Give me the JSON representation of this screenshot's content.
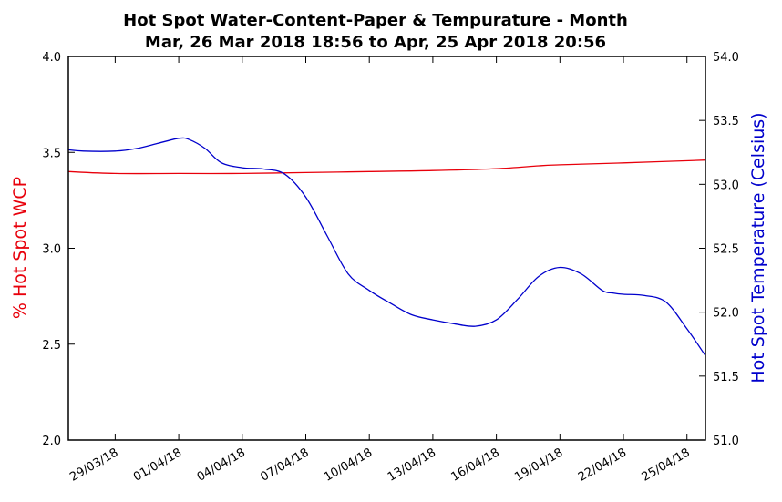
{
  "chart_data": {
    "type": "line",
    "title": "Hot Spot Water-Content-Paper & Tempurature - Month",
    "subtitle": "Mar, 26 Mar 2018 18:56 to Apr, 25 Apr 2018 20:56",
    "x_range": [
      "2018-03-26T18:56",
      "2018-04-25T20:56"
    ],
    "x_ticks": [
      {
        "date": "2018-03-29",
        "label": "29/03/18"
      },
      {
        "date": "2018-04-01",
        "label": "01/04/18"
      },
      {
        "date": "2018-04-04",
        "label": "04/04/18"
      },
      {
        "date": "2018-04-07",
        "label": "07/04/18"
      },
      {
        "date": "2018-04-10",
        "label": "10/04/18"
      },
      {
        "date": "2018-04-13",
        "label": "13/04/18"
      },
      {
        "date": "2018-04-16",
        "label": "16/04/18"
      },
      {
        "date": "2018-04-19",
        "label": "19/04/18"
      },
      {
        "date": "2018-04-22",
        "label": "22/04/18"
      },
      {
        "date": "2018-04-25",
        "label": "25/04/18"
      }
    ],
    "y_left": {
      "label": "% Hot Spot WCP",
      "ylim": [
        2.0,
        4.0
      ],
      "ticks": [
        "2.0",
        "2.5",
        "3.0",
        "3.5",
        "4.0"
      ],
      "color": "#e8000b"
    },
    "y_right": {
      "label": "Hot Spot Temperature (Celsius)",
      "ylim": [
        51.0,
        54.0
      ],
      "ticks": [
        "51.0",
        "51.5",
        "52.0",
        "52.5",
        "53.0",
        "53.5",
        "54.0"
      ],
      "color": "#0000cc"
    },
    "grid": false,
    "series": [
      {
        "axis": "left",
        "color": "#e8000b",
        "points": [
          [
            "2018-03-26T18:56",
            3.4
          ],
          [
            "2018-03-29T00:00",
            3.39
          ],
          [
            "2018-04-01T00:00",
            3.39
          ],
          [
            "2018-04-04T00:00",
            3.39
          ],
          [
            "2018-04-07T00:00",
            3.395
          ],
          [
            "2018-04-10T00:00",
            3.4
          ],
          [
            "2018-04-13T00:00",
            3.405
          ],
          [
            "2018-04-16T00:00",
            3.415
          ],
          [
            "2018-04-18T00:00",
            3.43
          ],
          [
            "2018-04-19T00:00",
            3.435
          ],
          [
            "2018-04-22T00:00",
            3.445
          ],
          [
            "2018-04-25T20:56",
            3.46
          ]
        ]
      },
      {
        "axis": "right",
        "color": "#0000cc",
        "points": [
          [
            "2018-03-26T18:56",
            53.27
          ],
          [
            "2018-03-27T12:00",
            53.26
          ],
          [
            "2018-03-29T00:00",
            53.26
          ],
          [
            "2018-03-30T00:00",
            53.28
          ],
          [
            "2018-03-31T00:00",
            53.32
          ],
          [
            "2018-04-01T00:00",
            53.36
          ],
          [
            "2018-04-01T12:00",
            53.35
          ],
          [
            "2018-04-02T06:00",
            53.28
          ],
          [
            "2018-04-03T00:00",
            53.17
          ],
          [
            "2018-04-04T00:00",
            53.13
          ],
          [
            "2018-04-05T00:00",
            53.12
          ],
          [
            "2018-04-06T00:00",
            53.08
          ],
          [
            "2018-04-07T00:00",
            52.9
          ],
          [
            "2018-04-08T00:00",
            52.6
          ],
          [
            "2018-04-09T00:00",
            52.3
          ],
          [
            "2018-04-10T00:00",
            52.17
          ],
          [
            "2018-04-11T00:00",
            52.07
          ],
          [
            "2018-04-12T00:00",
            51.98
          ],
          [
            "2018-04-13T00:00",
            51.94
          ],
          [
            "2018-04-14T00:00",
            51.91
          ],
          [
            "2018-04-15T00:00",
            51.89
          ],
          [
            "2018-04-16T00:00",
            51.94
          ],
          [
            "2018-04-17T00:00",
            52.1
          ],
          [
            "2018-04-18T00:00",
            52.28
          ],
          [
            "2018-04-19T00:00",
            52.35
          ],
          [
            "2018-04-20T00:00",
            52.3
          ],
          [
            "2018-04-21T00:00",
            52.17
          ],
          [
            "2018-04-21T12:00",
            52.15
          ],
          [
            "2018-04-22T00:00",
            52.14
          ],
          [
            "2018-04-23T00:00",
            52.13
          ],
          [
            "2018-04-24T00:00",
            52.08
          ],
          [
            "2018-04-25T00:00",
            51.87
          ],
          [
            "2018-04-25T20:56",
            51.66
          ]
        ]
      }
    ]
  }
}
